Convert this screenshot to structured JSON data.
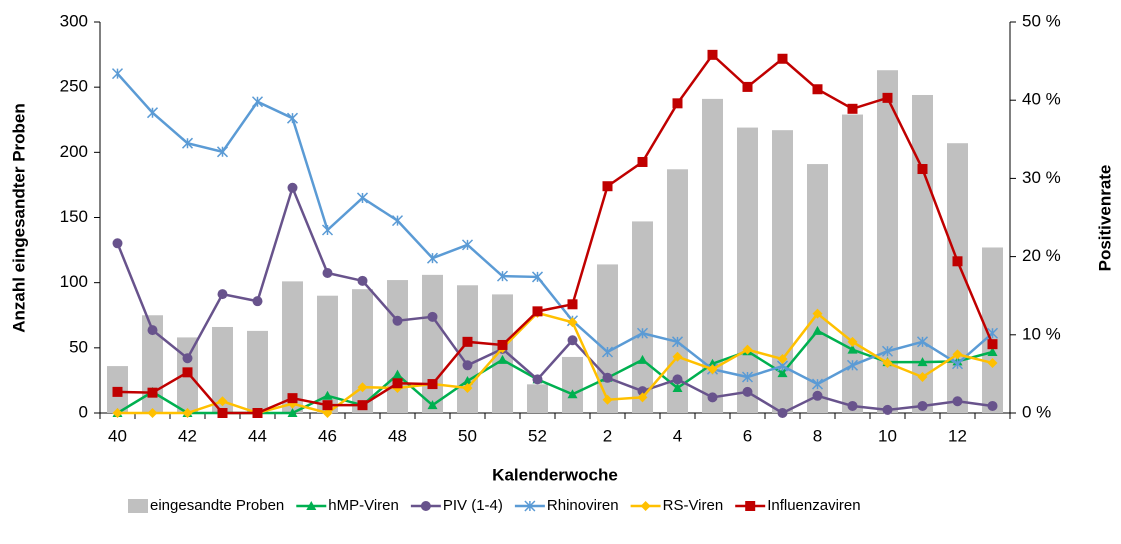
{
  "chart_data": {
    "type": "bar-line",
    "x_label": "Kalenderwoche",
    "y_label": "Anzahl eingesandter Proben",
    "y2_label": "Positivenrate",
    "categories": [
      40,
      null,
      42,
      null,
      44,
      null,
      46,
      null,
      48,
      null,
      50,
      null,
      52,
      null,
      2,
      null,
      4,
      null,
      6,
      null,
      8,
      null,
      10,
      null,
      12,
      null
    ],
    "ylim": [
      0,
      300
    ],
    "yticks": [
      0,
      50,
      100,
      150,
      200,
      250,
      300
    ],
    "y2lim": [
      0,
      50
    ],
    "y2ticks": [
      {
        "value": 0,
        "label": "0 %"
      },
      {
        "value": 10,
        "label": "10 %"
      },
      {
        "value": 20,
        "label": "20 %"
      },
      {
        "value": 30,
        "label": "30 %"
      },
      {
        "value": 40,
        "label": "40 %"
      },
      {
        "value": 50,
        "label": "50 %"
      }
    ],
    "series": [
      {
        "name": "eingesandte Proben",
        "type": "bar",
        "color": "#c0c0c0",
        "values": [
          36,
          75,
          58,
          66,
          63,
          101,
          90,
          95,
          102,
          106,
          98,
          91,
          22,
          43,
          114,
          147,
          187,
          241,
          219,
          217,
          191,
          229,
          263,
          244,
          207,
          127
        ]
      },
      {
        "name": "hMP-Viren",
        "type": "line",
        "axis": "y2",
        "marker": "triangle",
        "color": "#00b050",
        "values": [
          0,
          2.7,
          0,
          0,
          0,
          0,
          2.2,
          1,
          4.9,
          1,
          4.1,
          6.8,
          4.3,
          2.4,
          4.5,
          6.8,
          3.2,
          6.3,
          7.9,
          5.1,
          10.5,
          8.1,
          6.5,
          6.5,
          6.6,
          7.8
        ]
      },
      {
        "name": "PIV (1-4)",
        "type": "line",
        "axis": "y2",
        "marker": "circle",
        "color": "#68538c",
        "values": [
          21.7,
          10.6,
          7,
          15.2,
          14.3,
          28.8,
          17.9,
          16.9,
          11.8,
          12.3,
          6.1,
          8.2,
          4.3,
          9.3,
          4.5,
          2.8,
          4.3,
          2,
          2.7,
          0,
          2.2,
          0.9,
          0.4,
          0.9,
          1.5,
          0.9
        ]
      },
      {
        "name": "Rhinoviren",
        "type": "line",
        "axis": "y2",
        "marker": "asterisk",
        "color": "#5b9bd5",
        "values": [
          43.4,
          38.4,
          34.5,
          33.4,
          39.8,
          37.7,
          23.4,
          27.5,
          24.6,
          19.8,
          21.5,
          17.5,
          17.4,
          11.8,
          7.8,
          10.2,
          9.1,
          5.6,
          4.6,
          6,
          3.7,
          6.1,
          7.9,
          9.1,
          6.3,
          10.2
        ]
      },
      {
        "name": "RS-Viren",
        "type": "line",
        "axis": "y2",
        "marker": "diamond",
        "color": "#ffc000",
        "values": [
          0,
          0,
          0,
          1.5,
          0,
          1.2,
          0,
          3.3,
          3.2,
          3.7,
          3.2,
          8.3,
          12.8,
          11.6,
          1.7,
          2,
          7.2,
          5.6,
          8.1,
          6.9,
          12.7,
          9.1,
          6.4,
          4.6,
          7.5,
          6.4
        ]
      },
      {
        "name": "Influenzaviren",
        "type": "line",
        "axis": "y2",
        "marker": "square",
        "color": "#c00000",
        "values": [
          2.7,
          2.6,
          5.2,
          0,
          0,
          1.9,
          1,
          1,
          3.8,
          3.7,
          9.1,
          8.7,
          13,
          13.9,
          29,
          32.1,
          39.6,
          45.8,
          41.7,
          45.3,
          41.4,
          38.9,
          40.3,
          31.2,
          19.4,
          8.8
        ]
      }
    ]
  }
}
